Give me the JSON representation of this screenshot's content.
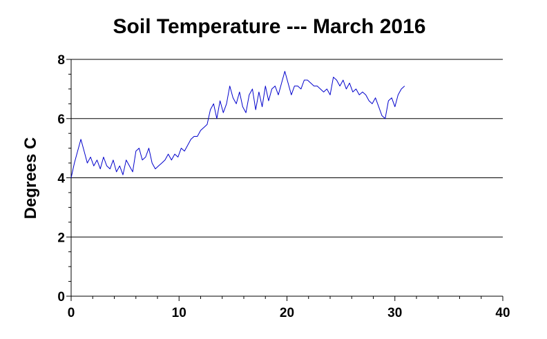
{
  "chart_data": {
    "type": "line",
    "title": "Soil Temperature --- March 2016",
    "xlabel": "",
    "ylabel": "Degrees C",
    "xlim": [
      0,
      40
    ],
    "ylim": [
      0,
      8
    ],
    "xticks": [
      "0",
      "10",
      "20",
      "30",
      "40"
    ],
    "yticks": [
      "0",
      "2",
      "4",
      "6",
      "8"
    ],
    "grid": "horizontal",
    "series": [
      {
        "color": "#0000cc",
        "x": [
          0.0,
          0.3,
          0.6,
          0.9,
          1.2,
          1.5,
          1.8,
          2.1,
          2.4,
          2.7,
          3.0,
          3.3,
          3.6,
          3.9,
          4.2,
          4.5,
          4.8,
          5.1,
          5.4,
          5.7,
          6.0,
          6.3,
          6.6,
          6.9,
          7.2,
          7.5,
          7.8,
          8.1,
          8.4,
          8.7,
          9.0,
          9.3,
          9.6,
          9.9,
          10.2,
          10.5,
          10.8,
          11.1,
          11.4,
          11.7,
          12.0,
          12.3,
          12.6,
          12.9,
          13.2,
          13.5,
          13.8,
          14.1,
          14.4,
          14.7,
          15.0,
          15.3,
          15.6,
          15.9,
          16.2,
          16.5,
          16.8,
          17.1,
          17.4,
          17.7,
          18.0,
          18.3,
          18.6,
          18.9,
          19.2,
          19.5,
          19.8,
          20.1,
          20.4,
          20.7,
          21.0,
          21.3,
          21.6,
          21.9,
          22.2,
          22.5,
          22.8,
          23.1,
          23.4,
          23.7,
          24.0,
          24.3,
          24.6,
          24.9,
          25.2,
          25.5,
          25.8,
          26.1,
          26.4,
          26.7,
          27.0,
          27.3,
          27.6,
          27.9,
          28.2,
          28.5,
          28.8,
          29.1,
          29.4,
          29.7,
          30.0,
          30.3,
          30.6,
          30.9
        ],
        "values": [
          4.0,
          4.5,
          4.9,
          5.3,
          4.9,
          4.5,
          4.7,
          4.4,
          4.6,
          4.3,
          4.7,
          4.4,
          4.3,
          4.6,
          4.2,
          4.4,
          4.1,
          4.6,
          4.4,
          4.2,
          4.9,
          5.0,
          4.6,
          4.7,
          5.0,
          4.5,
          4.3,
          4.4,
          4.5,
          4.6,
          4.8,
          4.6,
          4.8,
          4.7,
          5.0,
          4.9,
          5.1,
          5.3,
          5.4,
          5.4,
          5.6,
          5.7,
          5.8,
          6.3,
          6.5,
          6.0,
          6.6,
          6.2,
          6.5,
          7.1,
          6.7,
          6.5,
          6.9,
          6.4,
          6.2,
          6.8,
          7.0,
          6.3,
          6.9,
          6.4,
          7.1,
          6.6,
          7.0,
          7.1,
          6.8,
          7.2,
          7.6,
          7.2,
          6.8,
          7.1,
          7.1,
          7.0,
          7.3,
          7.3,
          7.2,
          7.1,
          7.1,
          7.0,
          6.9,
          7.0,
          6.8,
          7.4,
          7.3,
          7.1,
          7.3,
          7.0,
          7.2,
          6.9,
          7.0,
          6.8,
          6.9,
          6.8,
          6.6,
          6.5,
          6.7,
          6.4,
          6.1,
          6.0,
          6.6,
          6.7,
          6.4,
          6.8,
          7.0,
          7.1
        ]
      }
    ]
  }
}
